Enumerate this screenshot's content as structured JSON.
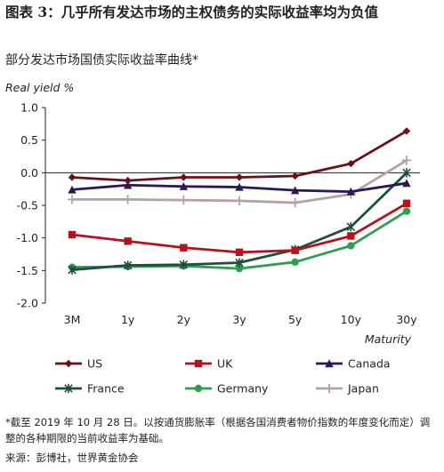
{
  "header": {
    "title": "图表 3：几乎所有发达市场的主权债务的实际收益率均为负值",
    "subtitle": "部分发达市场国债实际收益率曲线*"
  },
  "chart_data": {
    "type": "line",
    "title": "部分发达市场国债实际收益率曲线*",
    "ylabel": "Real yield %",
    "xlabel": "Maturity",
    "categories": [
      "3M",
      "1y",
      "2y",
      "3y",
      "5y",
      "10y",
      "30y"
    ],
    "ylim": [
      -2.0,
      1.0
    ],
    "yticks": [
      "1.0",
      "0.5",
      "0.0",
      "-0.5",
      "-1.0",
      "-1.5",
      "-2.0"
    ],
    "grid": false,
    "legend_position": "bottom",
    "series": [
      {
        "name": "US",
        "color": "#6b0f1a",
        "marker": "diamond",
        "values": [
          -0.07,
          -0.12,
          -0.07,
          -0.07,
          -0.05,
          0.14,
          0.64
        ]
      },
      {
        "name": "UK",
        "color": "#b5121b",
        "marker": "square",
        "values": [
          -0.95,
          -1.05,
          -1.15,
          -1.22,
          -1.19,
          -0.97,
          -0.47
        ]
      },
      {
        "name": "Canada",
        "color": "#2d1657",
        "marker": "triangle",
        "values": [
          -0.26,
          -0.19,
          -0.21,
          -0.22,
          -0.27,
          -0.29,
          -0.16
        ]
      },
      {
        "name": "France",
        "color": "#1e4e3c",
        "marker": "asterisk",
        "values": [
          -1.49,
          -1.42,
          -1.41,
          -1.38,
          -1.18,
          -0.83,
          0.0
        ]
      },
      {
        "name": "Germany",
        "color": "#2e9e4f",
        "marker": "circle",
        "values": [
          -1.45,
          -1.44,
          -1.43,
          -1.47,
          -1.37,
          -1.12,
          -0.59
        ]
      },
      {
        "name": "Japan",
        "color": "#b3a39e",
        "marker": "plus",
        "values": [
          -0.41,
          -0.41,
          -0.42,
          -0.43,
          -0.46,
          -0.33,
          0.19
        ]
      }
    ]
  },
  "footer": {
    "note": "*截至 2019 年 10 月 28 日。以按通货膨胀率（根据各国消费者物价指数的年度变化而定）调整的各种期限的当前收益率为基础。",
    "source": "来源：彭博社，世界黄金协会"
  }
}
